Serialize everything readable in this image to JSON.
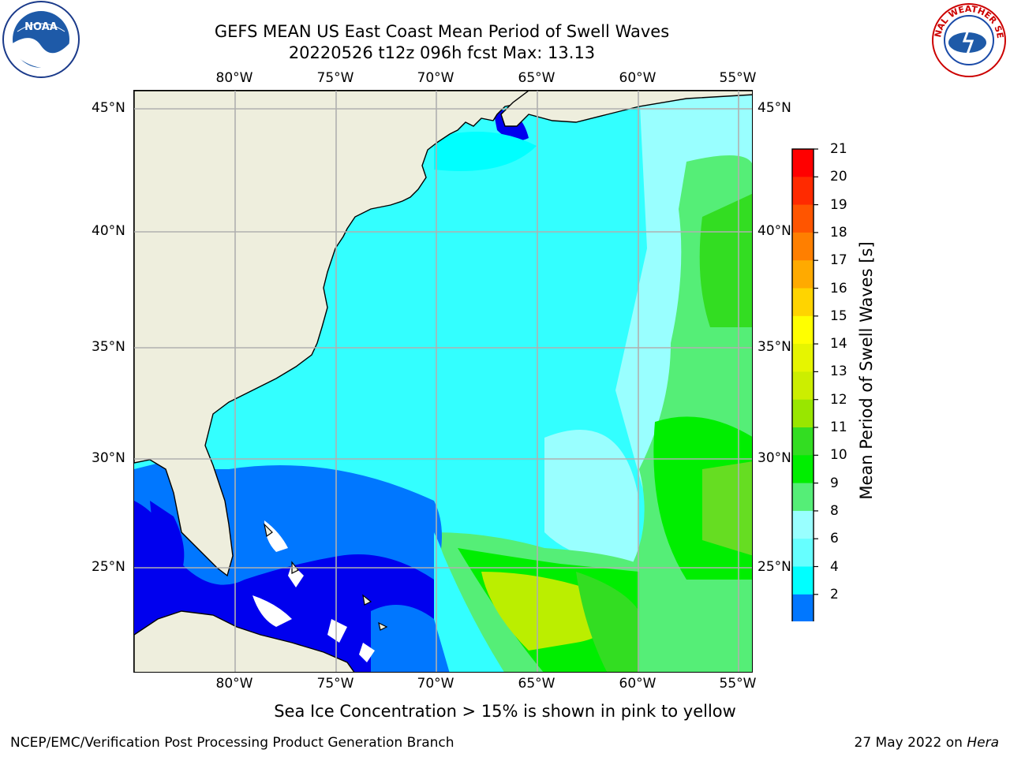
{
  "title": {
    "line1": "GEFS MEAN US East Coast Mean Period of Swell Waves",
    "line2": "20220526 t12z 096h fcst   Max: 13.13"
  },
  "logos": {
    "left": {
      "icon": "noaa-logo",
      "text": "NOAA"
    },
    "right": {
      "icon": "nws-logo",
      "text": "NATIONAL WEATHER SERVICE"
    }
  },
  "axes": {
    "lon_labels": [
      "80°W",
      "75°W",
      "70°W",
      "65°W",
      "60°W",
      "55°W"
    ],
    "lat_labels": [
      "45°N",
      "40°N",
      "35°N",
      "30°N",
      "25°N"
    ]
  },
  "colorbar": {
    "title": "Mean Period of Swell Waves [s]",
    "ticks": [
      "21",
      "20",
      "19",
      "18",
      "17",
      "16",
      "15",
      "14",
      "13",
      "12",
      "11",
      "10",
      "9",
      "8",
      "6",
      "4",
      "2"
    ],
    "colors": [
      "#ff0000",
      "#ff2a00",
      "#ff5500",
      "#ff7f00",
      "#ffaa00",
      "#ffd400",
      "#ffff00",
      "#e6f500",
      "#ccee00",
      "#99e600",
      "#33dd22",
      "#00ee00",
      "#55ee77",
      "#99ffff",
      "#66ffff",
      "#00ffff",
      "#0077ff"
    ],
    "under_color": "#0000ee"
  },
  "colors": {
    "land": "#eeeedd",
    "ocean_main": "#33ffff",
    "gridline": "#b0b0b0"
  },
  "footnote": "Sea Ice Concentration > 15% is shown in pink to yellow",
  "credit": {
    "left": "NCEP/EMC/Verification Post Processing Product Generation Branch",
    "date": "27 May 2022 on",
    "machine": "Hera"
  }
}
